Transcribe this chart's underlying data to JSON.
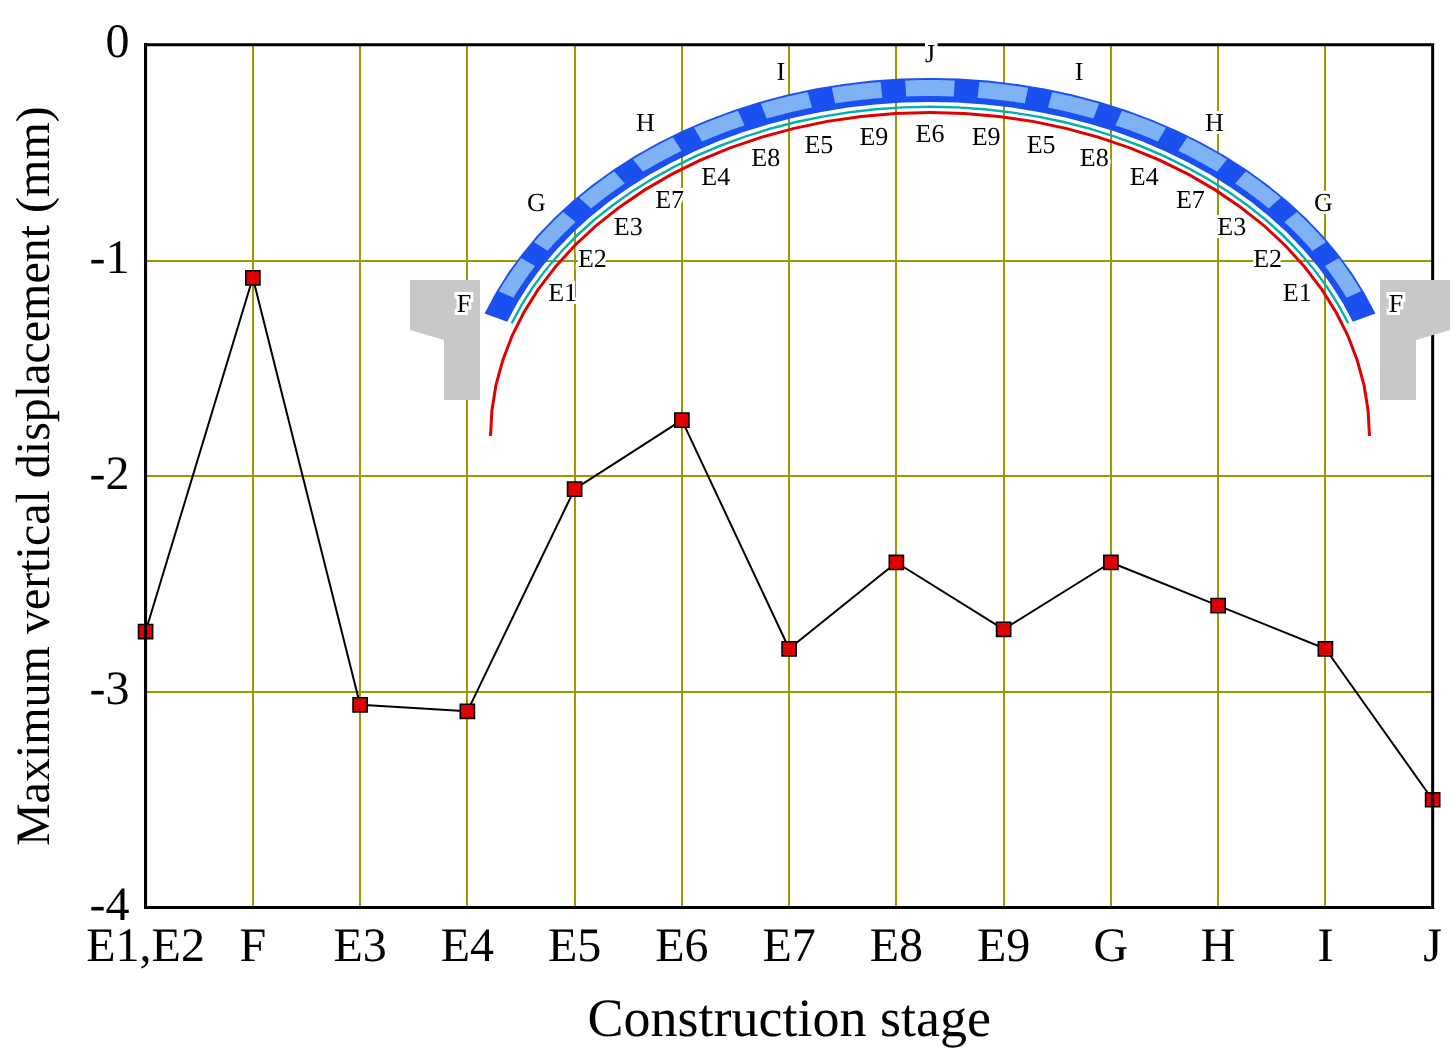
{
  "chart_data": {
    "type": "line",
    "xlabel": "Construction stage",
    "ylabel": "Maximum vertical displacement (mm)",
    "categories": [
      "E1,E2",
      "F",
      "E3",
      "E4",
      "E5",
      "E6",
      "E7",
      "E8",
      "E9",
      "G",
      "H",
      "I",
      "J"
    ],
    "series": [
      {
        "color": "#e00000",
        "values": [
          -2.72,
          -1.08,
          -3.06,
          -3.09,
          -2.06,
          -1.74,
          -2.8,
          -2.4,
          -2.71,
          -2.4,
          -2.6,
          -2.8,
          -3.5
        ]
      }
    ],
    "ylim": [
      -4,
      0
    ],
    "yticks": [
      -4,
      -3,
      -2,
      -1,
      0
    ],
    "grid": true,
    "legend": false,
    "marker": "square",
    "line_style": "solid",
    "annotations": [
      "F",
      "G",
      "H",
      "I",
      "J",
      "I",
      "H",
      "G",
      "F",
      "E1",
      "E2",
      "E3",
      "E7",
      "E4",
      "E8",
      "E5",
      "E9",
      "E6",
      "E9",
      "E5",
      "E8",
      "E4",
      "E7",
      "E3",
      "E2",
      "E1"
    ]
  }
}
